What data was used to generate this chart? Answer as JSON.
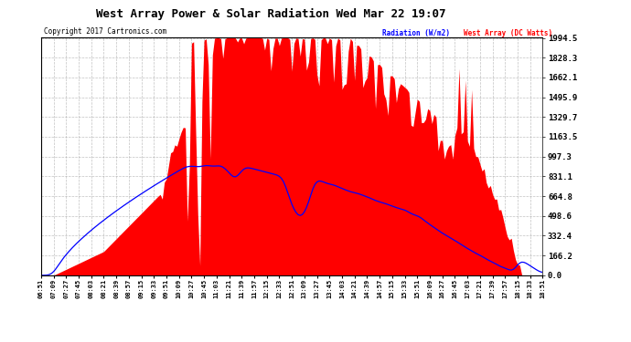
{
  "title": "West Array Power & Solar Radiation Wed Mar 22 19:07",
  "copyright": "Copyright 2017 Cartronics.com",
  "yticks": [
    0.0,
    166.2,
    332.4,
    498.6,
    664.8,
    831.1,
    997.3,
    1163.5,
    1329.7,
    1495.9,
    1662.1,
    1828.3,
    1994.5
  ],
  "ymax": 1994.5,
  "bg_color": "#ffffff",
  "plot_bg_color": "#ffffff",
  "grid_color": "#999999",
  "red_fill_color": "#ff0000",
  "blue_line_color": "#0000ff",
  "xtick_labels": [
    "06:51",
    "07:09",
    "07:27",
    "07:45",
    "08:03",
    "08:21",
    "08:39",
    "08:57",
    "09:15",
    "09:33",
    "09:51",
    "10:09",
    "10:27",
    "10:45",
    "11:03",
    "11:21",
    "11:39",
    "11:57",
    "12:15",
    "12:33",
    "12:51",
    "13:09",
    "13:27",
    "13:45",
    "14:03",
    "14:21",
    "14:39",
    "14:57",
    "15:15",
    "15:33",
    "15:51",
    "16:09",
    "16:27",
    "16:45",
    "17:03",
    "17:21",
    "17:39",
    "17:57",
    "18:15",
    "18:33",
    "18:51"
  ]
}
